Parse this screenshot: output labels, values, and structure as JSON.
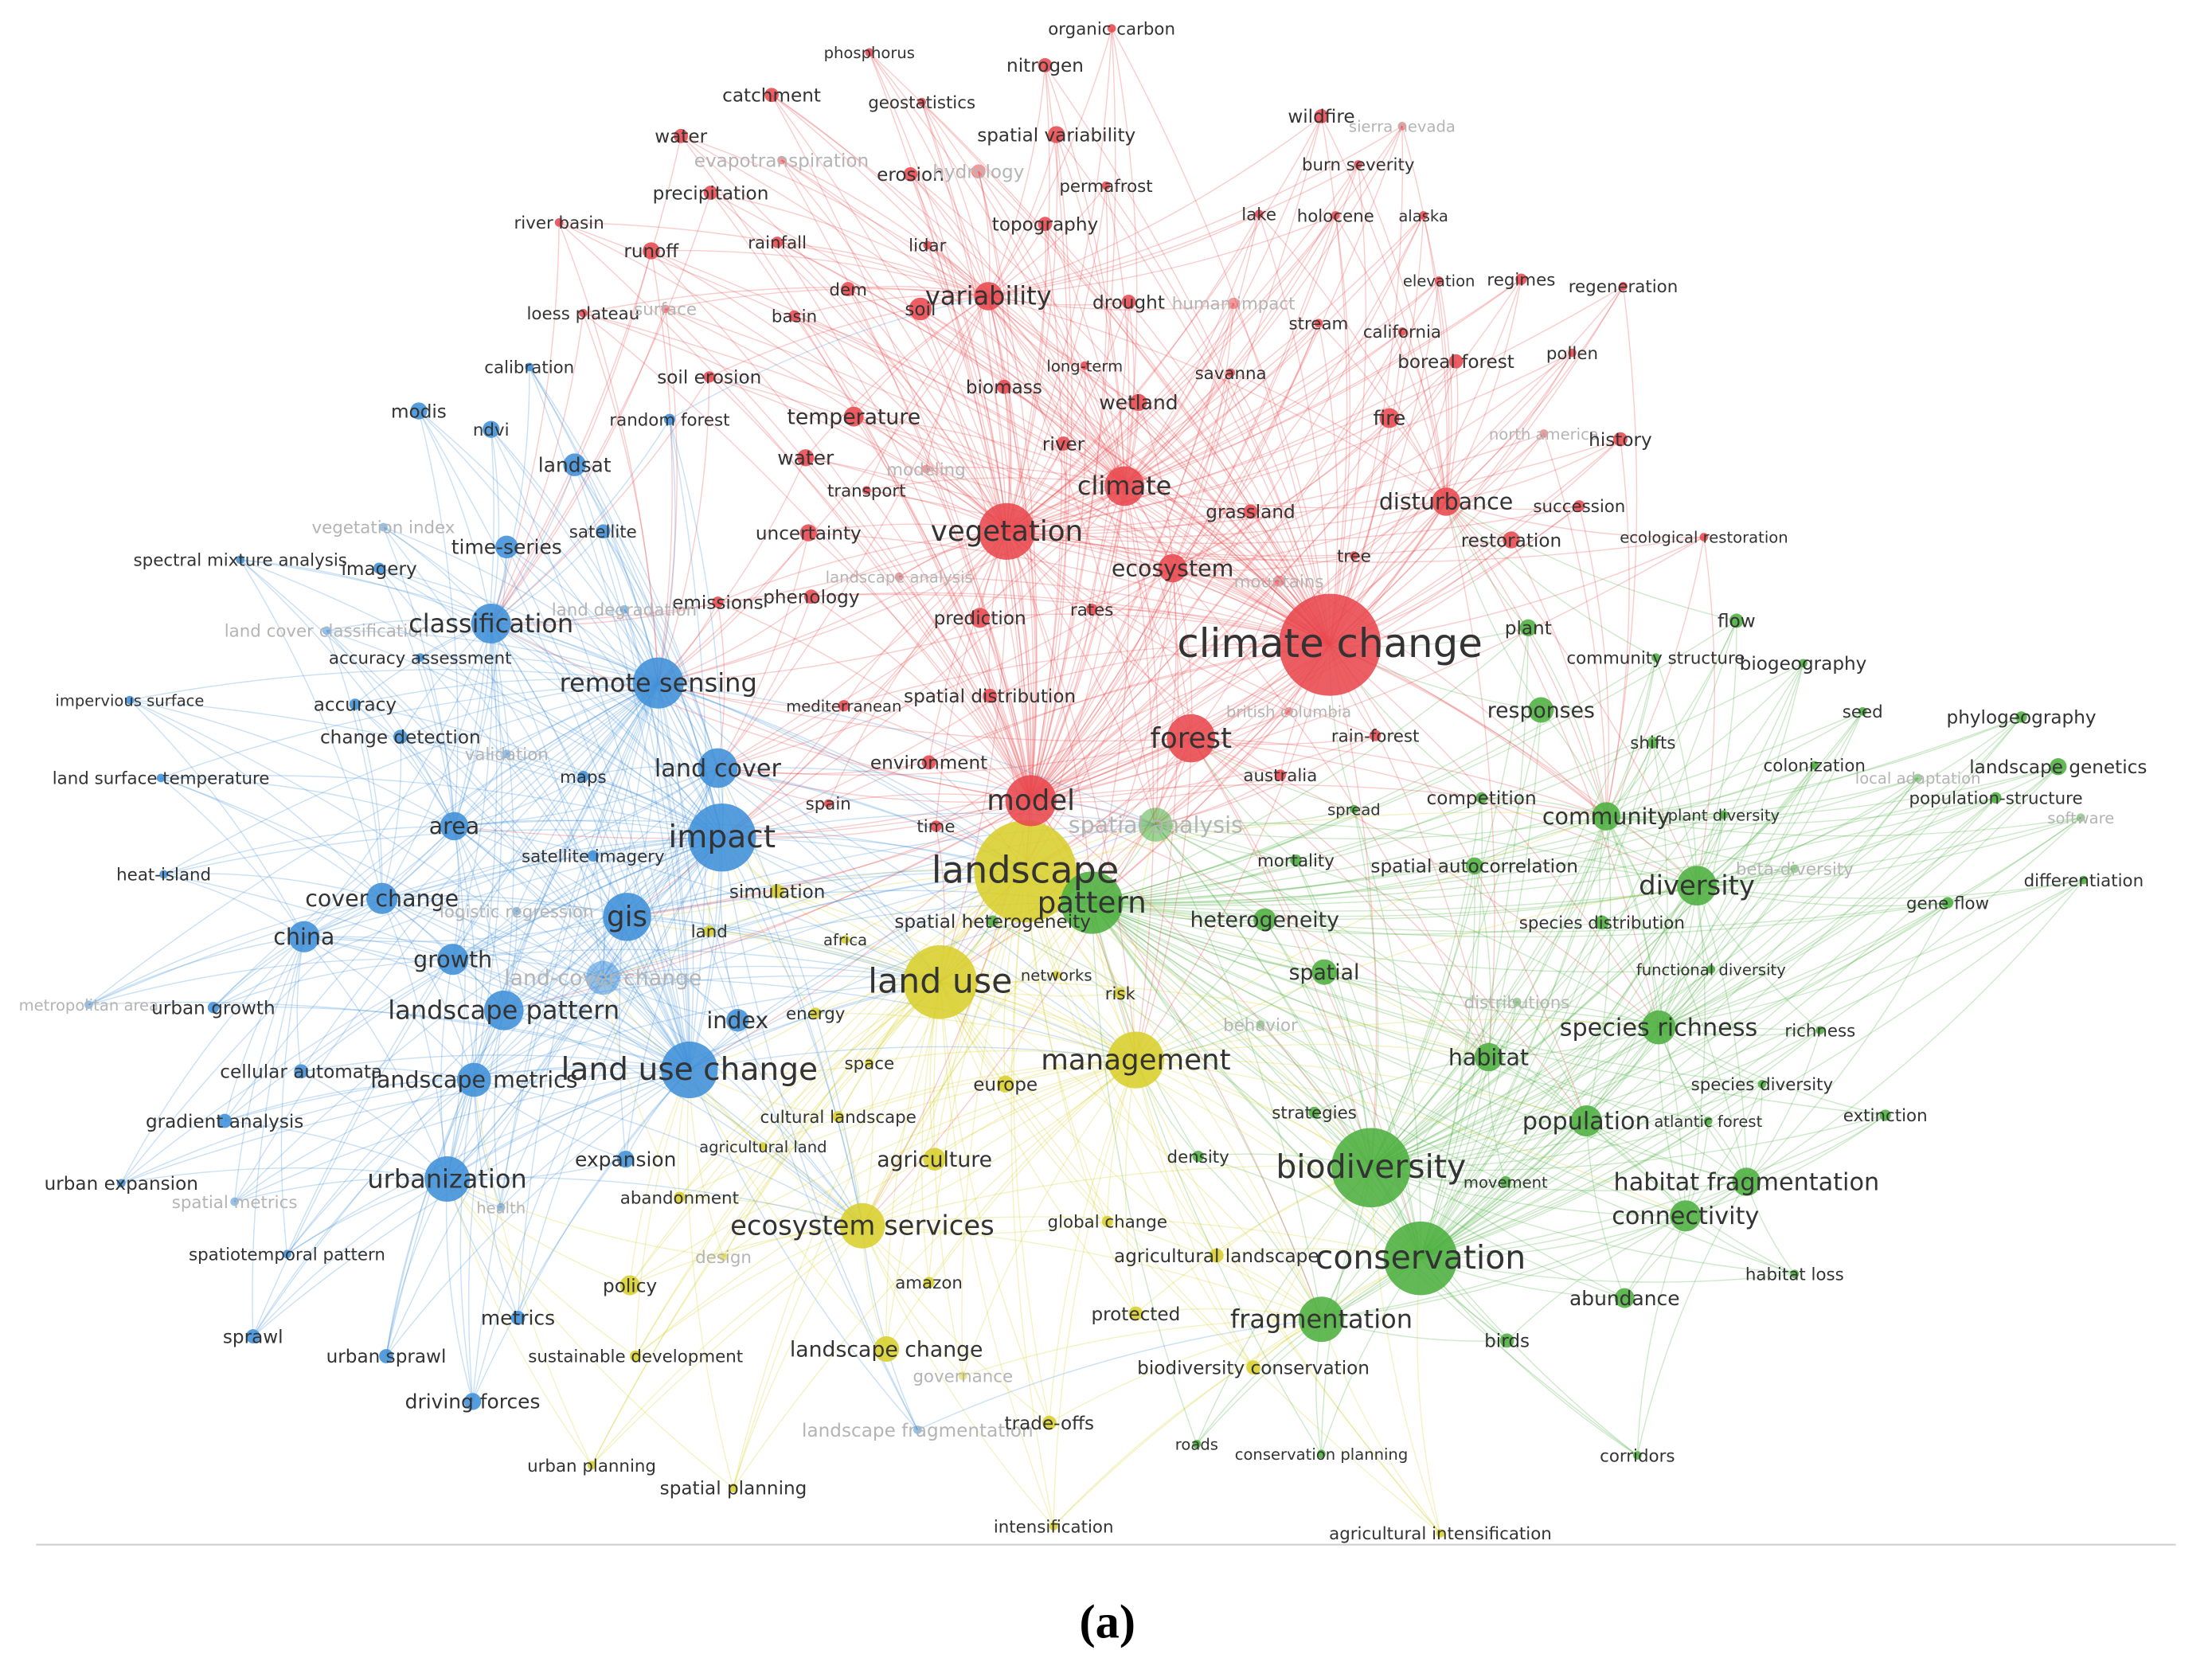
{
  "clusters": [
    {
      "color": "#e8484d",
      "nodes": [
        "organic carbon",
        "phosphorus",
        "nitrogen",
        "catchment",
        "geostatistics",
        "water",
        "evapotranspiration",
        "spatial variability",
        "wildfire",
        "sierra nevada",
        "erosion",
        "hydrology",
        "precipitation",
        "permafrost",
        "burn severity",
        "river basin",
        "lake",
        "holocene",
        "alaska",
        "runoff",
        "rainfall",
        "lidar",
        "topography",
        "dem",
        "soil",
        "variability",
        "drought",
        "human impact",
        "elevation",
        "regimes",
        "regeneration",
        "loess plateau",
        "surface",
        "basin",
        "stream",
        "california",
        "pollen",
        "boreal forest",
        "long-term",
        "savanna",
        "biomass",
        "wetland",
        "soil erosion",
        "temperature",
        "fire",
        "north america",
        "history",
        "river",
        "water",
        "modeling",
        "transport",
        "climate",
        "grassland",
        "disturbance",
        "succession",
        "restoration",
        "ecological restoration",
        "uncertainty",
        "vegetation",
        "tree",
        "ecosystem",
        "mountains",
        "landscape analysis",
        "emissions",
        "phenology",
        "prediction",
        "rates",
        "climate change",
        "forest",
        "mediterranean",
        "spatial distribution",
        "rain-forest",
        "british columbia",
        "australia",
        "environment",
        "model",
        "spain",
        "time"
      ]
    },
    {
      "color": "#3f8fd8",
      "nodes": [
        "calibration",
        "modis",
        "ndvi",
        "random forest",
        "landsat",
        "vegetation index",
        "satellite",
        "time-series",
        "spectral mixture analysis",
        "imagery",
        "land cover classification",
        "classification",
        "accuracy assessment",
        "land degradation",
        "remote sensing",
        "impervious surface",
        "accuracy",
        "change detection",
        "validation",
        "land surface temperature",
        "maps",
        "land cover",
        "impact",
        "area",
        "satellite imagery",
        "heat-island",
        "cover change",
        "logistic regression",
        "gis",
        "china",
        "growth",
        "land-cover change",
        "landscape pattern",
        "metropolitan area",
        "urban growth",
        "index",
        "cellular automata",
        "landscape metrics",
        "land use change",
        "gradient analysis",
        "urban expansion",
        "urbanization",
        "spatial metrics",
        "health",
        "spatiotemporal pattern",
        "expansion",
        "metrics",
        "sprawl",
        "urban sprawl",
        "driving forces",
        "landscape fragmentation"
      ]
    },
    {
      "color": "#d8cf2c",
      "nodes": [
        "landscape",
        "land use",
        "land",
        "simulation",
        "africa",
        "energy",
        "networks",
        "risk",
        "space",
        "europe",
        "management",
        "cultural landscape",
        "agricultural land",
        "agriculture",
        "abandonment",
        "ecosystem services",
        "global change",
        "design",
        "policy",
        "amazon",
        "agricultural landscape",
        "protected",
        "sustainable development",
        "landscape change",
        "governance",
        "trade-offs",
        "urban planning",
        "spatial planning",
        "intensification",
        "agricultural intensification",
        "biodiversity conservation"
      ]
    },
    {
      "color": "#4caf3f",
      "nodes": [
        "flow",
        "plant",
        "community structure",
        "biogeography",
        "responses",
        "seed",
        "phylogeography",
        "shifts",
        "colonization",
        "landscape genetics",
        "local adaptation",
        "population-structure",
        "competition",
        "spread",
        "community",
        "plant diversity",
        "spatial analysis",
        "software",
        "mortality",
        "spatial autocorrelation",
        "beta-diversity",
        "diversity",
        "differentiation",
        "pattern",
        "heterogeneity",
        "spatial heterogeneity",
        "species distribution",
        "gene flow",
        "spatial",
        "functional diversity",
        "behavior",
        "distributions",
        "species richness",
        "richness",
        "habitat",
        "strategies",
        "species diversity",
        "population",
        "atlantic forest",
        "extinction",
        "density",
        "biodiversity",
        "movement",
        "habitat fragmentation",
        "connectivity",
        "conservation",
        "habitat loss",
        "abundance",
        "fragmentation",
        "birds",
        "roads",
        "conservation planning",
        "corridors"
      ]
    }
  ],
  "caption": "(a)"
}
